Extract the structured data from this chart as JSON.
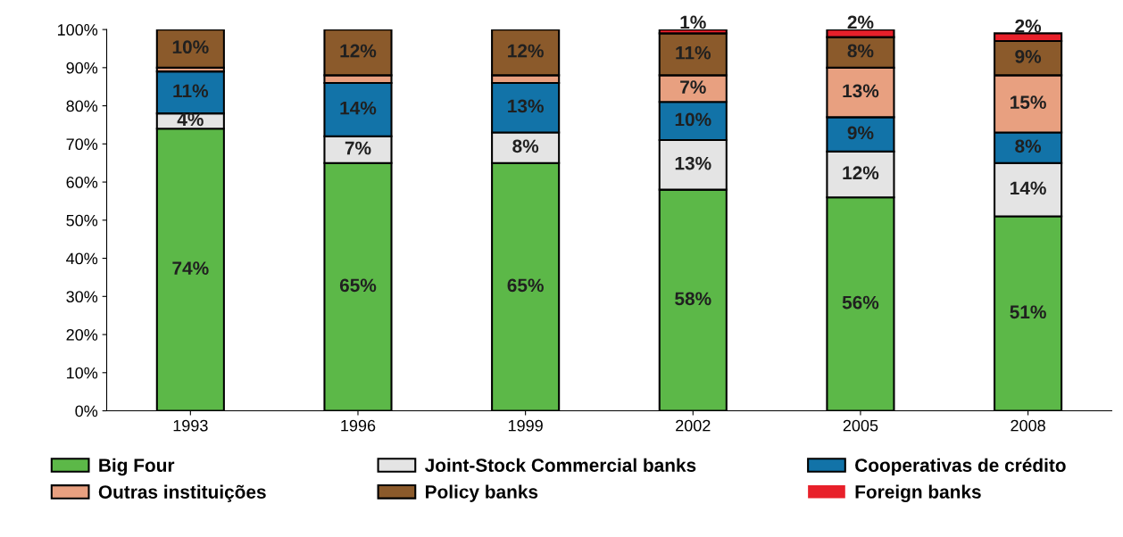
{
  "chart_data": {
    "type": "bar",
    "stacked": true,
    "categories": [
      "1993",
      "1996",
      "1999",
      "2002",
      "2005",
      "2008"
    ],
    "series": [
      {
        "name": "Big Four",
        "color": "#5cb848",
        "values": [
          74,
          65,
          65,
          58,
          56,
          51
        ],
        "value_labels": [
          "74%",
          "65%",
          "65%",
          "58%",
          "56%",
          "51%"
        ]
      },
      {
        "name": "Joint-Stock Commercial banks",
        "color": "#e4e4e4",
        "values": [
          4,
          7,
          8,
          13,
          12,
          14
        ],
        "value_labels": [
          "4%",
          "7%",
          "8%",
          "13%",
          "12%",
          "14%"
        ]
      },
      {
        "name": "Cooperativas de crédito",
        "color": "#1273a8",
        "values": [
          11,
          14,
          13,
          10,
          9,
          8
        ],
        "value_labels": [
          "11%",
          "14%",
          "13%",
          "10%",
          "9%",
          "8%"
        ]
      },
      {
        "name": "Outras instituições",
        "color": "#e8a080",
        "values": [
          1,
          2,
          2,
          7,
          13,
          15
        ],
        "value_labels": [
          null,
          null,
          null,
          "7%",
          "13%",
          "15%"
        ]
      },
      {
        "name": "Policy banks",
        "color": "#8b5a2b",
        "values": [
          10,
          12,
          12,
          11,
          8,
          9
        ],
        "value_labels": [
          "10%",
          "12%",
          "12%",
          "11%",
          "8%",
          "9%"
        ]
      },
      {
        "name": "Foreign banks",
        "color": "#e8202a",
        "values": [
          0,
          0,
          0,
          1,
          2,
          2
        ],
        "value_labels": [
          null,
          null,
          null,
          "1%",
          "2%",
          "2%"
        ]
      }
    ],
    "ylim": [
      0,
      100
    ],
    "yticks": [
      {
        "value": 0,
        "label": "0%"
      },
      {
        "value": 10,
        "label": "10%"
      },
      {
        "value": 20,
        "label": "20%"
      },
      {
        "value": 30,
        "label": "30%"
      },
      {
        "value": 40,
        "label": "40%"
      },
      {
        "value": 50,
        "label": "50%"
      },
      {
        "value": 60,
        "label": "60%"
      },
      {
        "value": 70,
        "label": "70%"
      },
      {
        "value": 80,
        "label": "80%"
      },
      {
        "value": 90,
        "label": "90%"
      },
      {
        "value": 100,
        "label": "100%"
      }
    ],
    "grid": false,
    "legend": "bottom"
  }
}
